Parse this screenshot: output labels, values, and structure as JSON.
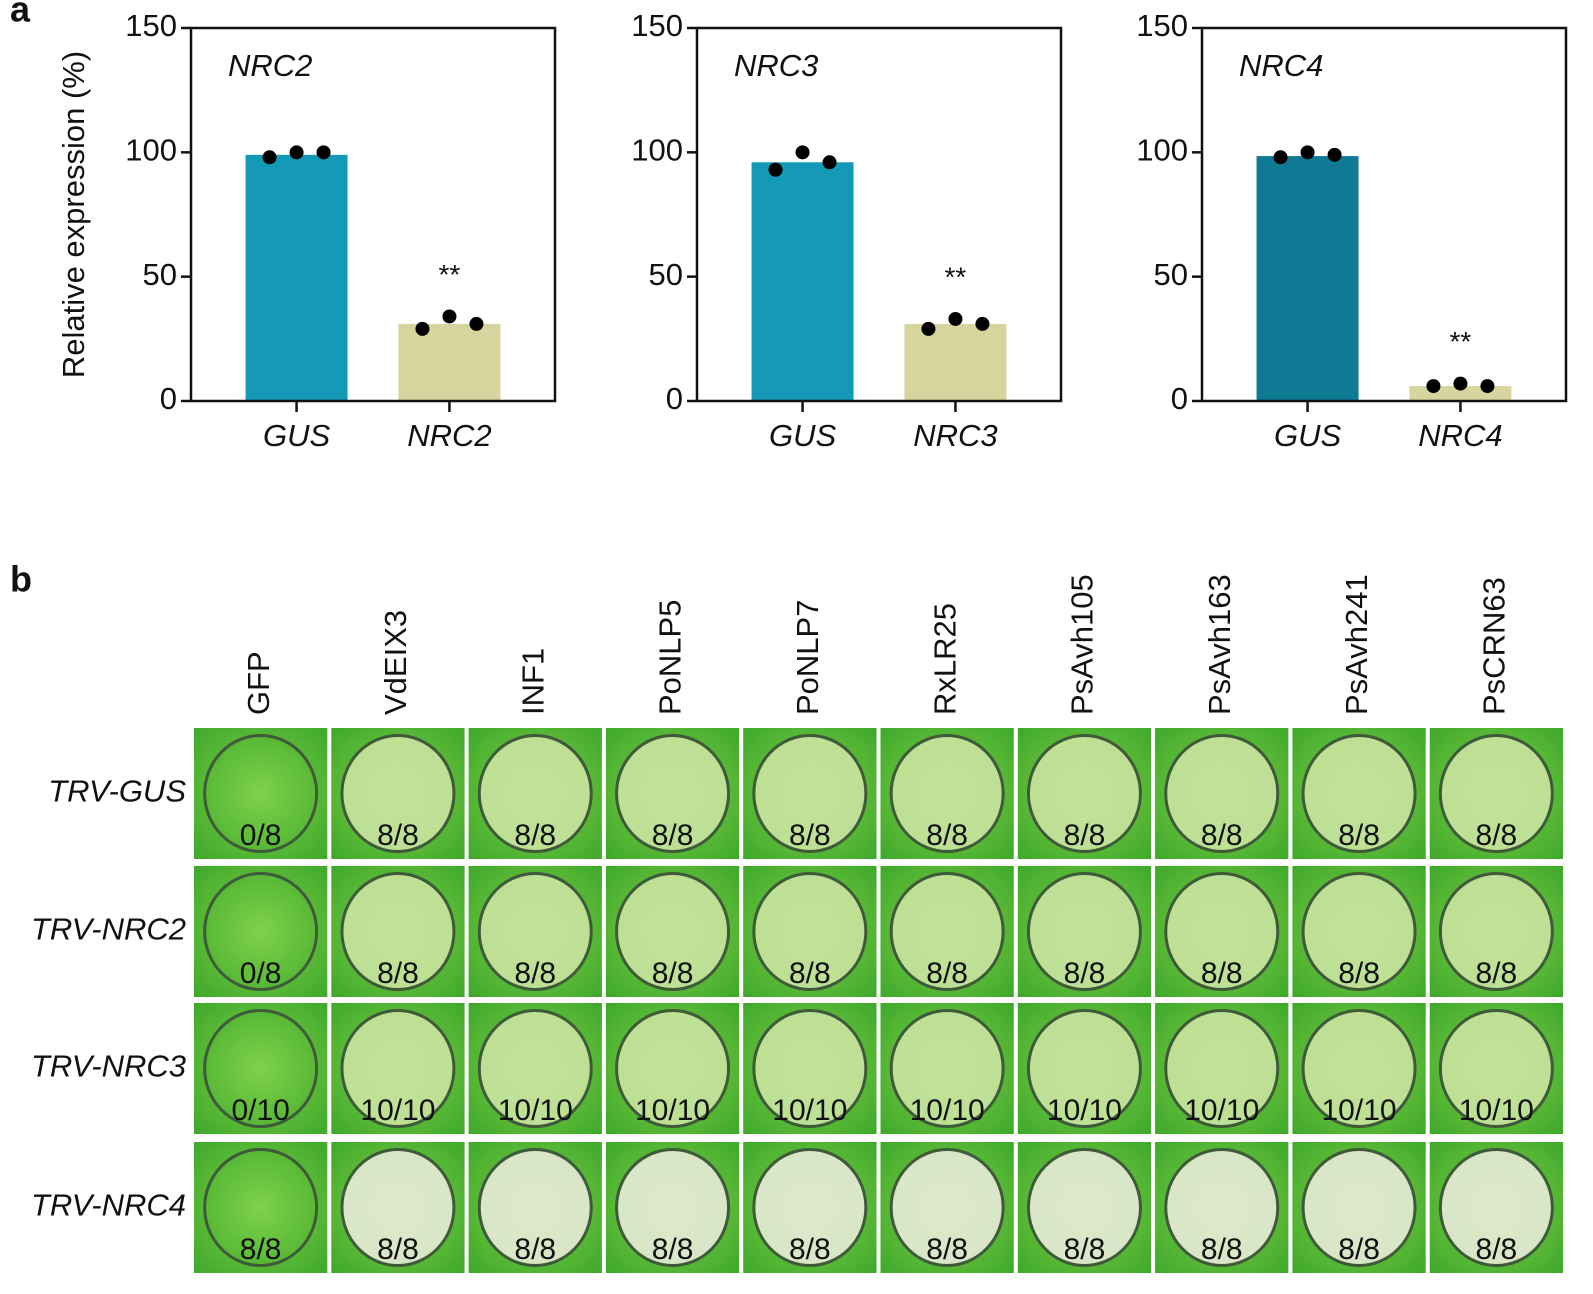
{
  "panel_labels": [
    "a",
    "b"
  ],
  "chart_data": [
    {
      "type": "bar",
      "title": "NRC2",
      "ylabel": "Relative expression (%)",
      "categories": [
        "GUS",
        "NRC2"
      ],
      "values": [
        99,
        31
      ],
      "colors": [
        "#1499b6",
        "#d7d59e"
      ],
      "points": [
        [
          98,
          100,
          100
        ],
        [
          29,
          34,
          31
        ]
      ],
      "significance": [
        null,
        "**"
      ],
      "ylim": [
        0,
        150
      ],
      "yticks": [
        0,
        50,
        100,
        150
      ]
    },
    {
      "type": "bar",
      "title": "NRC3",
      "categories": [
        "GUS",
        "NRC3"
      ],
      "values": [
        96,
        31
      ],
      "colors": [
        "#1499b6",
        "#d7d59e"
      ],
      "points": [
        [
          93,
          100,
          96
        ],
        [
          29,
          33,
          31
        ]
      ],
      "significance": [
        null,
        "**"
      ],
      "ylim": [
        0,
        150
      ],
      "yticks": [
        0,
        50,
        100,
        150
      ]
    },
    {
      "type": "bar",
      "title": "NRC4",
      "categories": [
        "GUS",
        "NRC4"
      ],
      "values": [
        98.5,
        6
      ],
      "colors": [
        "#0f7a94",
        "#d7d59e"
      ],
      "points": [
        [
          98,
          100,
          99
        ],
        [
          6,
          7,
          6
        ]
      ],
      "significance": [
        null,
        "**"
      ],
      "ylim": [
        0,
        150
      ],
      "yticks": [
        0,
        50,
        100,
        150
      ]
    }
  ],
  "panel_b": {
    "columns": [
      "GFP",
      "VdEIX3",
      "INF1",
      "PoNLP5",
      "PoNLP7",
      "RxLR25",
      "PsAvh105",
      "PsAvh163",
      "PsAvh241",
      "PsCRN63"
    ],
    "rows": [
      "TRV-GUS",
      "TRV-NRC2",
      "TRV-NRC3",
      "TRV-NRC4"
    ],
    "cells": [
      [
        "0/8",
        "8/8",
        "8/8",
        "8/8",
        "8/8",
        "8/8",
        "8/8",
        "8/8",
        "8/8",
        "8/8"
      ],
      [
        "0/8",
        "8/8",
        "8/8",
        "8/8",
        "8/8",
        "8/8",
        "8/8",
        "8/8",
        "8/8",
        "8/8"
      ],
      [
        "0/10",
        "10/10",
        "10/10",
        "10/10",
        "10/10",
        "10/10",
        "10/10",
        "10/10",
        "10/10",
        "10/10"
      ],
      [
        "8/8",
        "8/8",
        "8/8",
        "8/8",
        "8/8",
        "8/8",
        "8/8",
        "8/8",
        "8/8",
        "8/8"
      ]
    ]
  }
}
